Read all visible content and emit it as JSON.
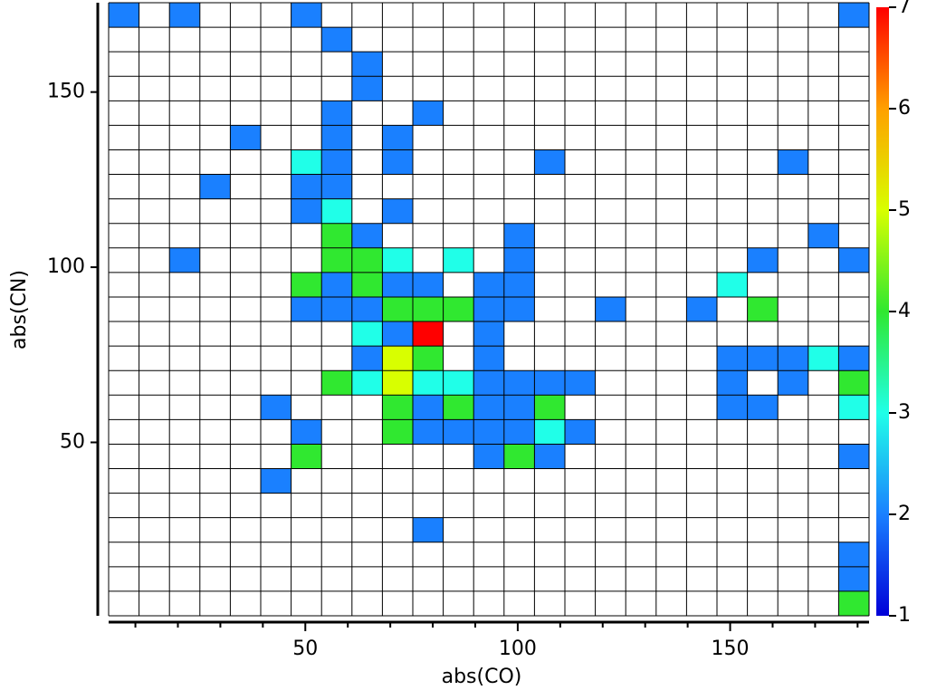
{
  "chart_data": {
    "type": "heatmap",
    "xlabel": "abs(CO)",
    "ylabel": "abs(CN)",
    "colormap": "jet",
    "xlim": [
      3.7,
      182.7
    ],
    "ylim": [
      0.5,
      175.5
    ],
    "xticks": [
      50,
      100,
      150
    ],
    "yticks": [
      50,
      100,
      150
    ],
    "xminorticks": [
      10,
      20,
      30,
      40,
      60,
      70,
      80,
      90,
      110,
      120,
      130,
      140,
      160,
      170,
      180
    ],
    "clim": [
      1,
      7
    ],
    "cticks": [
      1,
      2,
      3,
      4,
      5,
      6,
      7
    ],
    "x_bins": [
      3.7,
      10.86,
      18.02,
      25.18,
      32.34,
      39.5,
      46.66,
      53.82,
      60.98,
      68.14,
      75.3,
      82.46,
      89.62,
      96.78,
      103.94,
      111.1,
      118.26,
      125.42,
      132.58,
      139.74,
      146.9,
      154.06,
      161.22,
      168.38,
      175.54,
      182.7
    ],
    "y_bins": [
      0.5,
      7.5,
      14.5,
      21.5,
      28.5,
      35.5,
      42.5,
      49.5,
      56.5,
      63.5,
      70.5,
      77.5,
      84.5,
      91.5,
      98.5,
      105.5,
      112.5,
      119.5,
      126.5,
      133.5,
      140.5,
      147.5,
      154.5,
      161.5,
      168.5,
      175.5
    ],
    "z": [
      [
        null,
        null,
        null,
        null,
        null,
        null,
        null,
        null,
        null,
        null,
        null,
        null,
        null,
        null,
        null,
        null,
        null,
        null,
        null,
        null,
        null,
        null,
        null,
        null,
        4
      ],
      [
        null,
        null,
        null,
        null,
        null,
        null,
        null,
        null,
        null,
        null,
        null,
        null,
        null,
        null,
        null,
        null,
        null,
        null,
        null,
        null,
        null,
        null,
        null,
        null,
        2
      ],
      [
        null,
        null,
        null,
        null,
        null,
        null,
        null,
        null,
        null,
        null,
        null,
        null,
        null,
        null,
        null,
        null,
        null,
        null,
        null,
        null,
        null,
        null,
        null,
        null,
        2
      ],
      [
        null,
        null,
        null,
        null,
        null,
        null,
        null,
        null,
        null,
        null,
        2,
        null,
        null,
        null,
        null,
        null,
        null,
        null,
        null,
        null,
        null,
        null,
        null,
        null,
        null
      ],
      [
        null,
        null,
        null,
        null,
        null,
        null,
        null,
        null,
        null,
        null,
        null,
        null,
        null,
        null,
        null,
        null,
        null,
        null,
        null,
        null,
        null,
        null,
        null,
        null,
        null
      ],
      [
        null,
        null,
        null,
        null,
        null,
        2,
        null,
        null,
        null,
        null,
        null,
        null,
        null,
        null,
        null,
        null,
        null,
        null,
        null,
        null,
        null,
        null,
        null,
        null,
        null
      ],
      [
        null,
        null,
        null,
        null,
        null,
        null,
        4,
        null,
        null,
        null,
        null,
        null,
        2,
        4,
        2,
        null,
        null,
        null,
        null,
        null,
        null,
        null,
        null,
        null,
        2
      ],
      [
        null,
        null,
        null,
        null,
        null,
        null,
        2,
        null,
        null,
        4,
        2,
        2,
        2,
        2,
        3,
        2,
        null,
        null,
        null,
        null,
        null,
        null,
        null,
        null,
        null
      ],
      [
        null,
        null,
        null,
        null,
        null,
        2,
        null,
        null,
        null,
        4,
        2,
        4,
        2,
        2,
        4,
        null,
        null,
        null,
        null,
        null,
        2,
        2,
        null,
        null,
        3
      ],
      [
        null,
        null,
        null,
        null,
        null,
        null,
        null,
        4,
        3,
        5,
        3,
        3,
        2,
        2,
        2,
        2,
        null,
        null,
        null,
        null,
        2,
        null,
        2,
        null,
        4
      ],
      [
        null,
        null,
        null,
        null,
        null,
        null,
        null,
        null,
        2,
        5,
        4,
        null,
        2,
        null,
        null,
        null,
        null,
        null,
        null,
        null,
        2,
        2,
        2,
        3,
        2
      ],
      [
        null,
        null,
        null,
        null,
        null,
        null,
        null,
        null,
        3,
        2,
        7,
        null,
        2,
        null,
        null,
        null,
        null,
        null,
        null,
        null,
        null,
        null,
        null,
        null,
        null
      ],
      [
        null,
        null,
        null,
        null,
        null,
        null,
        2,
        2,
        2,
        4,
        4,
        4,
        2,
        2,
        null,
        null,
        2,
        null,
        null,
        2,
        null,
        4,
        null,
        null,
        null
      ],
      [
        null,
        null,
        null,
        null,
        null,
        null,
        4,
        2,
        4,
        2,
        2,
        null,
        2,
        2,
        null,
        null,
        null,
        null,
        null,
        null,
        3,
        null,
        null,
        null,
        null
      ],
      [
        null,
        null,
        2,
        null,
        null,
        null,
        null,
        4,
        4,
        3,
        null,
        3,
        null,
        2,
        null,
        null,
        null,
        null,
        null,
        null,
        null,
        2,
        null,
        null,
        2
      ],
      [
        null,
        null,
        null,
        null,
        null,
        null,
        null,
        4,
        2,
        null,
        null,
        null,
        null,
        2,
        null,
        null,
        null,
        null,
        null,
        null,
        null,
        null,
        null,
        2,
        null
      ],
      [
        null,
        null,
        null,
        null,
        null,
        null,
        2,
        3,
        null,
        2,
        null,
        null,
        null,
        null,
        null,
        null,
        null,
        null,
        null,
        null,
        null,
        null,
        null,
        null,
        null
      ],
      [
        null,
        null,
        null,
        2,
        null,
        null,
        2,
        2,
        null,
        null,
        null,
        null,
        null,
        null,
        null,
        null,
        null,
        null,
        null,
        null,
        null,
        null,
        null,
        null,
        null
      ],
      [
        null,
        null,
        null,
        null,
        null,
        null,
        3,
        2,
        null,
        2,
        null,
        null,
        null,
        null,
        2,
        null,
        null,
        null,
        null,
        null,
        null,
        null,
        2,
        null,
        null
      ],
      [
        null,
        null,
        null,
        null,
        2,
        null,
        null,
        2,
        null,
        2,
        null,
        null,
        null,
        null,
        null,
        null,
        null,
        null,
        null,
        null,
        null,
        null,
        null,
        null,
        null
      ],
      [
        null,
        null,
        null,
        null,
        null,
        null,
        null,
        2,
        null,
        null,
        2,
        null,
        null,
        null,
        null,
        null,
        null,
        null,
        null,
        null,
        null,
        null,
        null,
        null,
        null
      ],
      [
        null,
        null,
        null,
        null,
        null,
        null,
        null,
        null,
        2,
        null,
        null,
        null,
        null,
        null,
        null,
        null,
        null,
        null,
        null,
        null,
        null,
        null,
        null,
        null,
        null
      ],
      [
        null,
        null,
        null,
        null,
        null,
        null,
        null,
        null,
        2,
        null,
        null,
        null,
        null,
        null,
        null,
        null,
        null,
        null,
        null,
        null,
        null,
        null,
        null,
        null,
        null
      ],
      [
        null,
        null,
        null,
        null,
        null,
        null,
        null,
        2,
        null,
        null,
        null,
        null,
        null,
        null,
        null,
        null,
        null,
        null,
        null,
        null,
        null,
        null,
        null,
        null,
        null
      ],
      [
        2,
        null,
        2,
        null,
        null,
        null,
        2,
        null,
        null,
        null,
        null,
        null,
        null,
        null,
        null,
        null,
        null,
        null,
        null,
        null,
        null,
        null,
        null,
        null,
        2
      ]
    ]
  }
}
